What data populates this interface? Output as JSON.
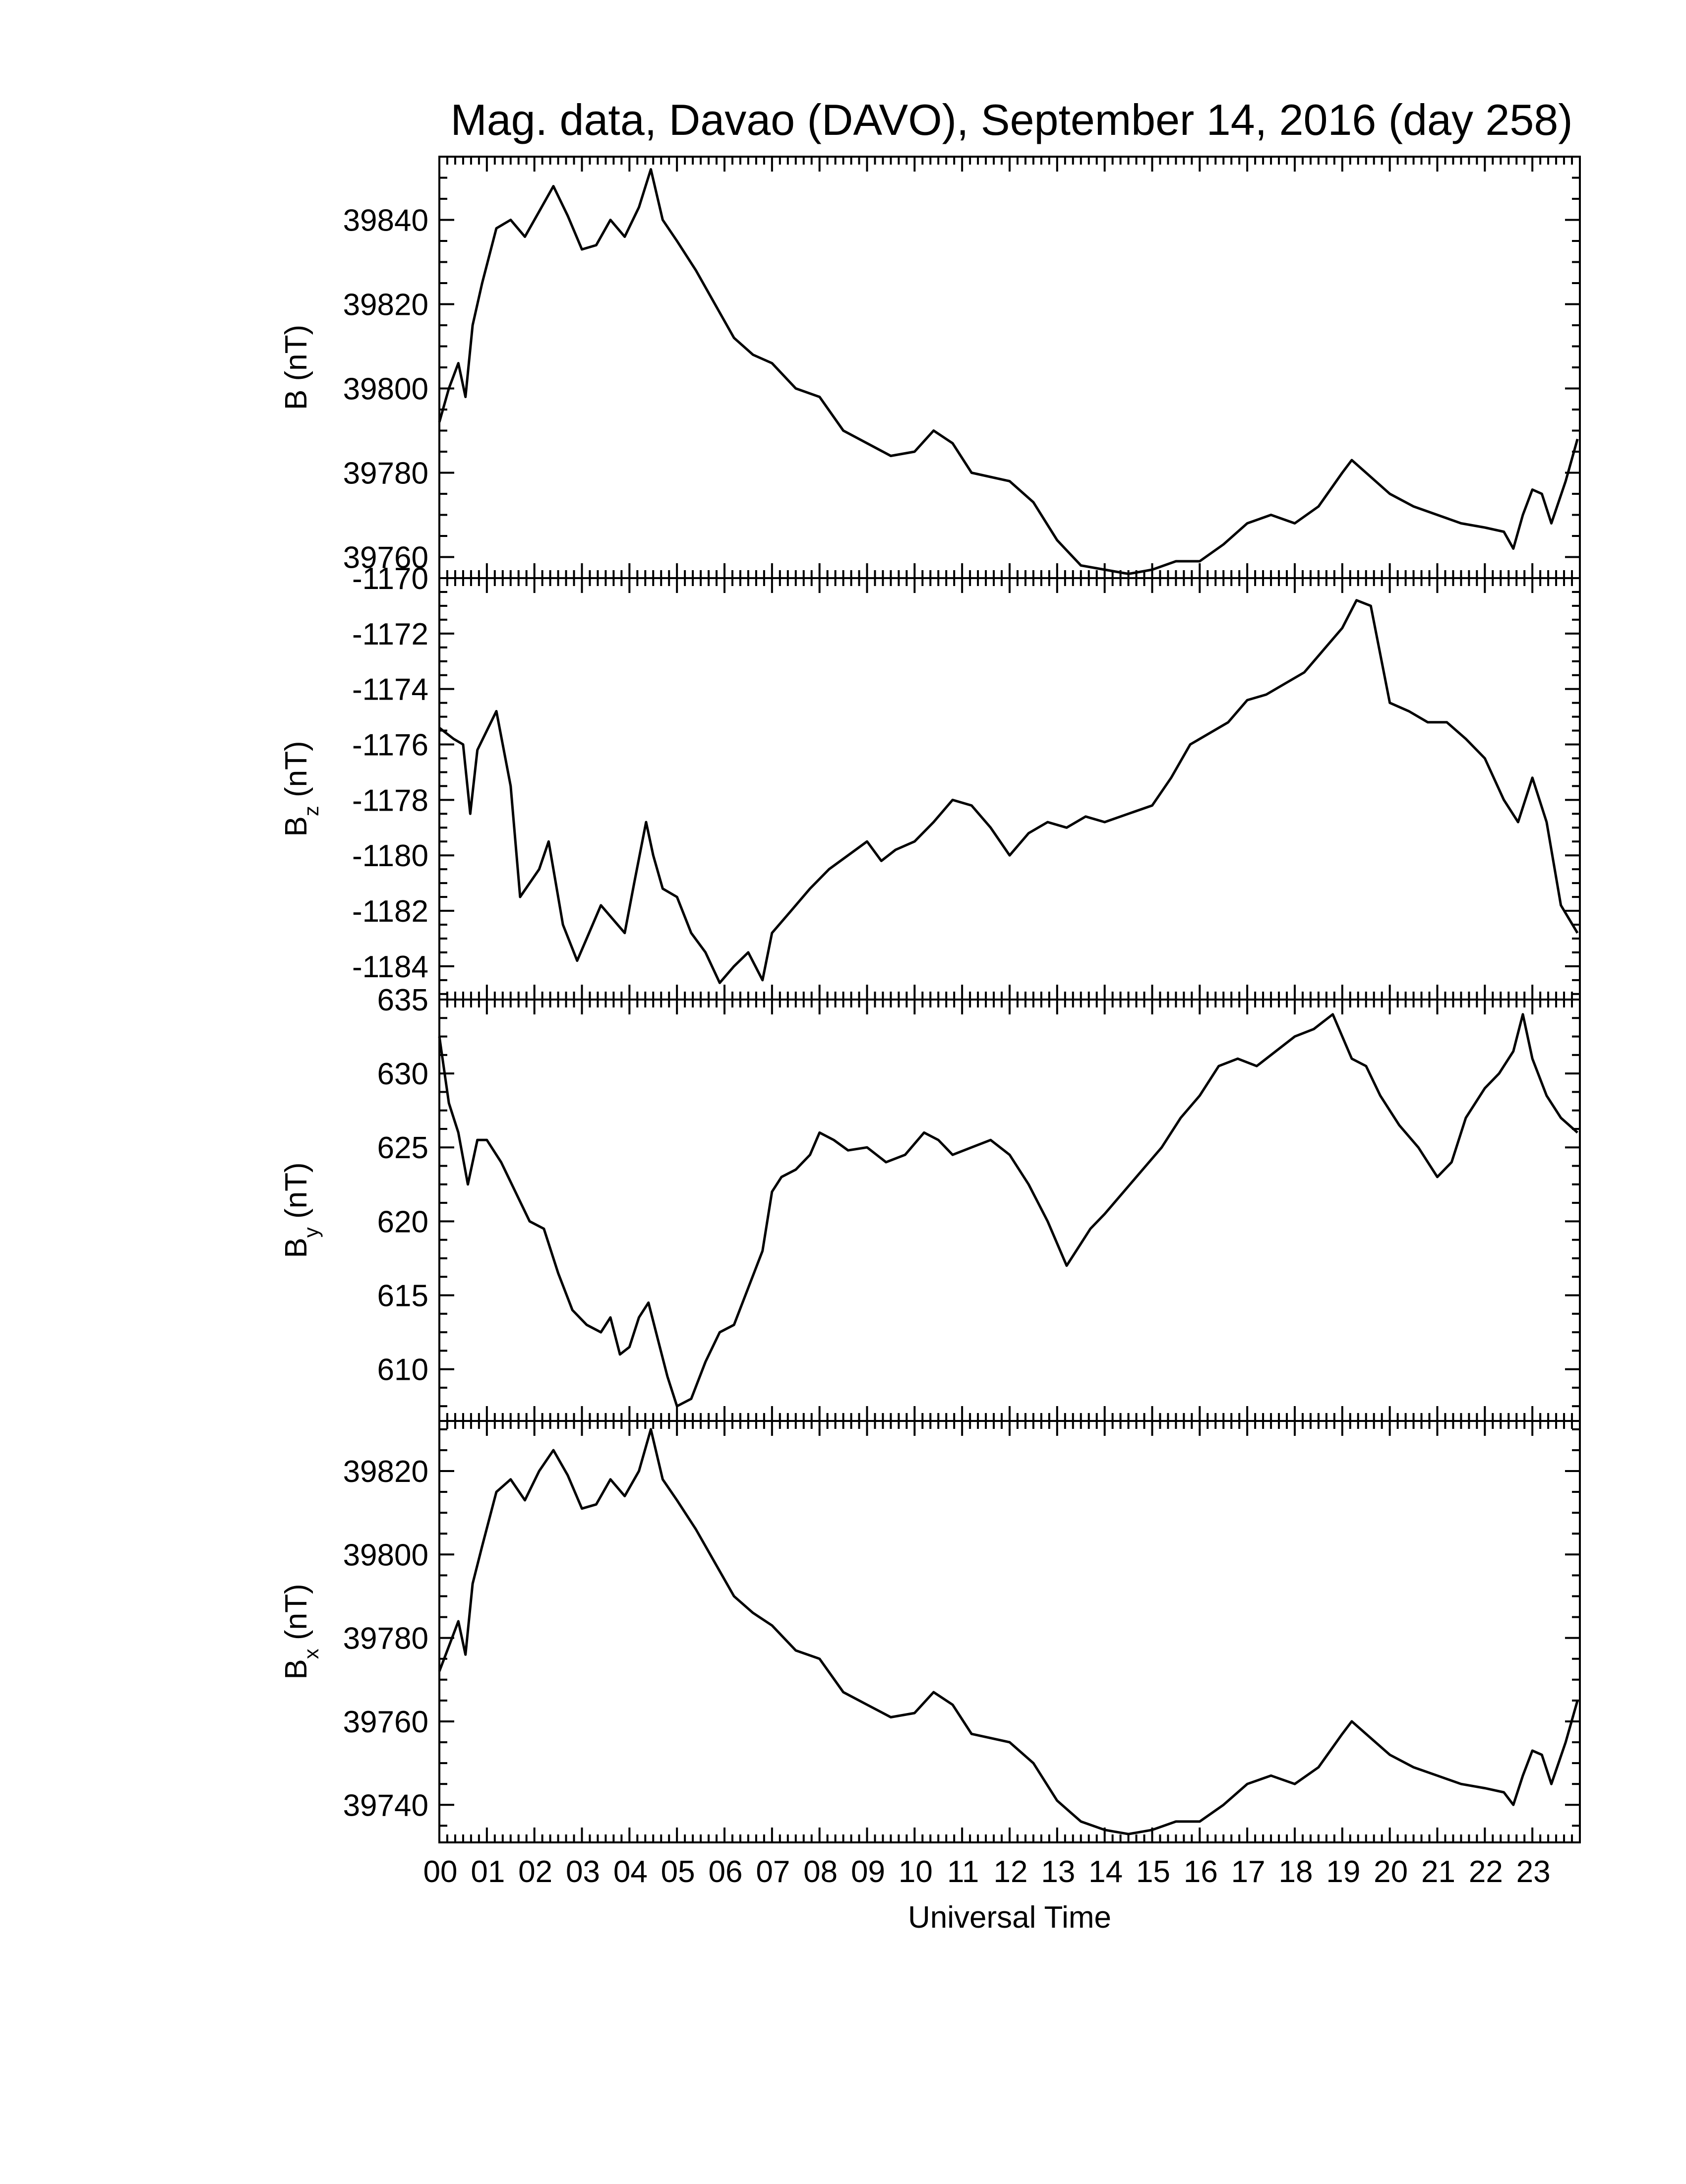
{
  "title": "Mag. data, Davao (DAVO), September 14, 2016 (day 258)",
  "chart_data": {
    "type": "line",
    "title": "Mag. data, Davao (DAVO), September 14, 2016 (day 258)",
    "xlabel": "Universal Time",
    "xlim": [
      0,
      24
    ],
    "x_ticks": [
      "00",
      "01",
      "02",
      "03",
      "04",
      "05",
      "06",
      "07",
      "08",
      "09",
      "10",
      "11",
      "12",
      "13",
      "14",
      "15",
      "16",
      "17",
      "18",
      "19",
      "20",
      "21",
      "22",
      "23"
    ],
    "panels": [
      {
        "id": "B",
        "ylabel": "B (nT)",
        "ylabel_main": "B",
        "ylabel_sub": "",
        "ylabel_unit": "(nT)",
        "ylim": [
          39755,
          39855
        ],
        "y_ticks": [
          39760,
          39780,
          39800,
          39820,
          39840
        ],
        "x": [
          0,
          0.2,
          0.4,
          0.55,
          0.7,
          0.9,
          1.2,
          1.5,
          1.8,
          2.1,
          2.4,
          2.7,
          3.0,
          3.3,
          3.6,
          3.9,
          4.2,
          4.45,
          4.7,
          5.0,
          5.4,
          5.8,
          6.2,
          6.6,
          7.0,
          7.5,
          8.0,
          8.5,
          9.0,
          9.5,
          10.0,
          10.4,
          10.8,
          11.2,
          11.6,
          12.0,
          12.5,
          13.0,
          13.5,
          14.0,
          14.5,
          15.0,
          15.5,
          16.0,
          16.5,
          17.0,
          17.5,
          18.0,
          18.5,
          19.0,
          19.2,
          19.5,
          20.0,
          20.5,
          21.0,
          21.5,
          22.0,
          22.4,
          22.6,
          22.8,
          23.0,
          23.2,
          23.4,
          23.7,
          23.95
        ],
        "y": [
          39792,
          39800,
          39806,
          39798,
          39815,
          39825,
          39838,
          39840,
          39836,
          39842,
          39848,
          39841,
          39833,
          39834,
          39840,
          39836,
          39843,
          39852,
          39840,
          39835,
          39828,
          39820,
          39812,
          39808,
          39806,
          39800,
          39798,
          39790,
          39787,
          39784,
          39785,
          39790,
          39787,
          39780,
          39779,
          39778,
          39773,
          39764,
          39758,
          39757,
          39756,
          39757,
          39759,
          39759,
          39763,
          39768,
          39770,
          39768,
          39772,
          39780,
          39783,
          39780,
          39775,
          39772,
          39770,
          39768,
          39767,
          39766,
          39762,
          39770,
          39776,
          39775,
          39768,
          39778,
          39788
        ]
      },
      {
        "id": "Bz",
        "ylabel": "Bz (nT)",
        "ylabel_main": "B",
        "ylabel_sub": "z",
        "ylabel_unit": "(nT)",
        "ylim": [
          -1185.2,
          -1170.0
        ],
        "y_ticks": [
          -1184,
          -1182,
          -1180,
          -1178,
          -1176,
          -1174,
          -1172,
          -1170
        ],
        "x": [
          0,
          0.3,
          0.5,
          0.65,
          0.8,
          1.0,
          1.2,
          1.5,
          1.7,
          1.9,
          2.1,
          2.3,
          2.6,
          2.9,
          3.1,
          3.4,
          3.6,
          3.9,
          4.1,
          4.35,
          4.5,
          4.7,
          5.0,
          5.3,
          5.6,
          5.9,
          6.2,
          6.5,
          6.8,
          7.0,
          7.4,
          7.8,
          8.2,
          8.6,
          9.0,
          9.3,
          9.6,
          10.0,
          10.4,
          10.8,
          11.2,
          11.6,
          12.0,
          12.4,
          12.8,
          13.2,
          13.6,
          14.0,
          14.5,
          15.0,
          15.4,
          15.8,
          16.2,
          16.6,
          17.0,
          17.4,
          17.8,
          18.2,
          18.6,
          19.0,
          19.3,
          19.6,
          20.0,
          20.4,
          20.8,
          21.2,
          21.6,
          22.0,
          22.4,
          22.7,
          23.0,
          23.3,
          23.6,
          23.95
        ],
        "y": [
          -1175.4,
          -1175.8,
          -1176.0,
          -1178.5,
          -1176.2,
          -1175.5,
          -1174.8,
          -1177.5,
          -1181.5,
          -1181.0,
          -1180.5,
          -1179.5,
          -1182.5,
          -1183.8,
          -1183.0,
          -1181.8,
          -1182.2,
          -1182.8,
          -1181.0,
          -1178.8,
          -1180.0,
          -1181.2,
          -1181.5,
          -1182.8,
          -1183.5,
          -1184.6,
          -1184.0,
          -1183.5,
          -1184.5,
          -1182.8,
          -1182.0,
          -1181.2,
          -1180.5,
          -1180.0,
          -1179.5,
          -1180.2,
          -1179.8,
          -1179.5,
          -1178.8,
          -1178.0,
          -1178.2,
          -1179.0,
          -1180.0,
          -1179.2,
          -1178.8,
          -1179.0,
          -1178.6,
          -1178.8,
          -1178.5,
          -1178.2,
          -1177.2,
          -1176.0,
          -1175.6,
          -1175.2,
          -1174.4,
          -1174.2,
          -1173.8,
          -1173.4,
          -1172.6,
          -1171.8,
          -1170.8,
          -1171.0,
          -1174.5,
          -1174.8,
          -1175.2,
          -1175.2,
          -1175.8,
          -1176.5,
          -1178.0,
          -1178.8,
          -1177.2,
          -1178.8,
          -1181.8,
          -1182.8
        ]
      },
      {
        "id": "By",
        "ylabel": "By (nT)",
        "ylabel_main": "B",
        "ylabel_sub": "y",
        "ylabel_unit": "(nT)",
        "ylim": [
          606.5,
          635.0
        ],
        "y_ticks": [
          610,
          615,
          620,
          625,
          630,
          635
        ],
        "x": [
          0,
          0.2,
          0.4,
          0.6,
          0.8,
          1.0,
          1.3,
          1.6,
          1.9,
          2.2,
          2.5,
          2.8,
          3.1,
          3.4,
          3.6,
          3.8,
          4.0,
          4.2,
          4.4,
          4.6,
          4.8,
          5.0,
          5.3,
          5.6,
          5.9,
          6.2,
          6.5,
          6.8,
          7.0,
          7.2,
          7.5,
          7.8,
          8.0,
          8.3,
          8.6,
          9.0,
          9.4,
          9.8,
          10.2,
          10.5,
          10.8,
          11.2,
          11.6,
          12.0,
          12.4,
          12.8,
          13.2,
          13.5,
          13.7,
          14.0,
          14.4,
          14.8,
          15.2,
          15.6,
          16.0,
          16.4,
          16.8,
          17.2,
          17.6,
          18.0,
          18.4,
          18.8,
          19.2,
          19.5,
          19.8,
          20.2,
          20.6,
          21.0,
          21.3,
          21.6,
          22.0,
          22.3,
          22.6,
          22.8,
          23.0,
          23.3,
          23.6,
          23.95
        ],
        "y": [
          632.5,
          628.0,
          626.0,
          622.5,
          625.5,
          625.5,
          624.0,
          622.0,
          620.0,
          619.5,
          616.5,
          614.0,
          613.0,
          612.5,
          613.5,
          611.0,
          611.5,
          613.5,
          614.5,
          612.0,
          609.5,
          607.5,
          608.0,
          610.5,
          612.5,
          613.0,
          615.5,
          618.0,
          622.0,
          623.0,
          623.5,
          624.5,
          626.0,
          625.5,
          624.8,
          625.0,
          624.0,
          624.5,
          626.0,
          625.5,
          624.5,
          625.0,
          625.5,
          624.5,
          622.5,
          620.0,
          617.0,
          618.5,
          619.5,
          620.5,
          622.0,
          623.5,
          625.0,
          627.0,
          628.5,
          630.5,
          631.0,
          630.5,
          631.5,
          632.5,
          633.0,
          634.0,
          631.0,
          630.5,
          628.5,
          626.5,
          625.0,
          623.0,
          624.0,
          627.0,
          629.0,
          630.0,
          631.5,
          634.0,
          631.0,
          628.5,
          627.0,
          626.0
        ]
      },
      {
        "id": "Bx",
        "ylabel": "Bx (nT)",
        "ylabel_main": "B",
        "ylabel_sub": "x",
        "ylabel_unit": "(nT)",
        "ylim": [
          39731,
          39832
        ],
        "y_ticks": [
          39740,
          39760,
          39780,
          39800,
          39820
        ],
        "x": [
          0,
          0.2,
          0.4,
          0.55,
          0.7,
          0.9,
          1.2,
          1.5,
          1.8,
          2.1,
          2.4,
          2.7,
          3.0,
          3.3,
          3.6,
          3.9,
          4.2,
          4.45,
          4.7,
          5.0,
          5.4,
          5.8,
          6.2,
          6.6,
          7.0,
          7.5,
          8.0,
          8.5,
          9.0,
          9.5,
          10.0,
          10.4,
          10.8,
          11.2,
          11.6,
          12.0,
          12.5,
          13.0,
          13.5,
          14.0,
          14.5,
          15.0,
          15.5,
          16.0,
          16.5,
          17.0,
          17.5,
          18.0,
          18.5,
          19.0,
          19.2,
          19.5,
          20.0,
          20.5,
          21.0,
          21.5,
          22.0,
          22.4,
          22.6,
          22.8,
          23.0,
          23.2,
          23.4,
          23.7,
          23.95
        ],
        "y": [
          39772,
          39778,
          39784,
          39776,
          39793,
          39802,
          39815,
          39818,
          39813,
          39820,
          39825,
          39819,
          39811,
          39812,
          39818,
          39814,
          39820,
          39830,
          39818,
          39813,
          39806,
          39798,
          39790,
          39786,
          39783,
          39777,
          39775,
          39767,
          39764,
          39761,
          39762,
          39767,
          39764,
          39757,
          39756,
          39755,
          39750,
          39741,
          39736,
          39734,
          39733,
          39734,
          39736,
          39736,
          39740,
          39745,
          39747,
          39745,
          39749,
          39757,
          39760,
          39757,
          39752,
          39749,
          39747,
          39745,
          39744,
          39743,
          39740,
          39747,
          39753,
          39752,
          39745,
          39755,
          39765
        ]
      }
    ]
  }
}
